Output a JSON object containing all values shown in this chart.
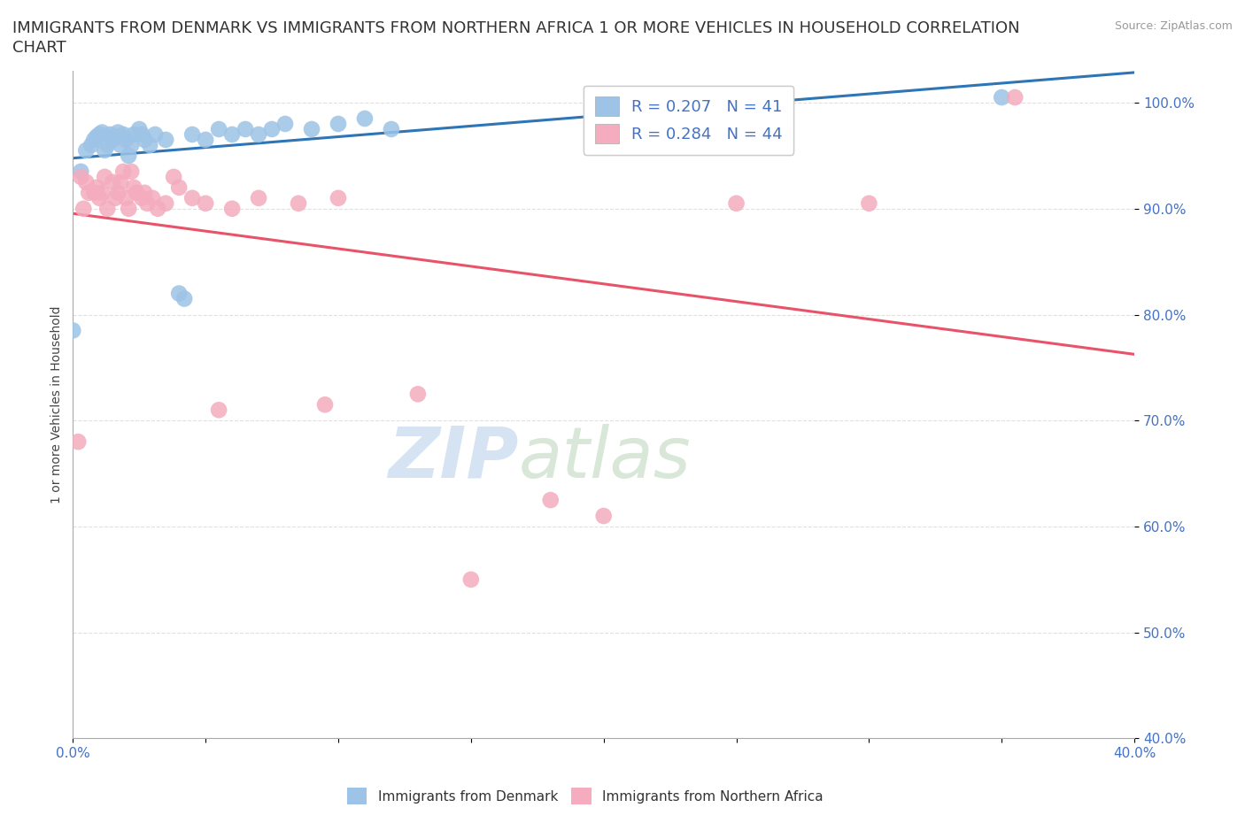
{
  "title_line1": "IMMIGRANTS FROM DENMARK VS IMMIGRANTS FROM NORTHERN AFRICA 1 OR MORE VEHICLES IN HOUSEHOLD CORRELATION",
  "title_line2": "CHART",
  "source_text": "Source: ZipAtlas.com",
  "ylabel": "1 or more Vehicles in Household",
  "watermark_zip": "ZIP",
  "watermark_atlas": "atlas",
  "denmark_x": [
    0.0,
    0.3,
    0.5,
    0.7,
    0.8,
    0.9,
    1.0,
    1.1,
    1.2,
    1.3,
    1.4,
    1.5,
    1.6,
    1.7,
    1.8,
    1.9,
    2.0,
    2.1,
    2.2,
    2.3,
    2.5,
    2.6,
    2.7,
    2.9,
    3.1,
    3.5,
    4.0,
    4.2,
    4.5,
    5.0,
    5.5,
    6.0,
    6.5,
    7.0,
    7.5,
    8.0,
    9.0,
    10.0,
    11.0,
    12.0,
    35.0
  ],
  "denmark_y": [
    78.5,
    93.5,
    95.5,
    96.0,
    96.5,
    96.8,
    97.0,
    97.2,
    95.5,
    96.0,
    97.0,
    96.5,
    96.8,
    97.2,
    96.0,
    97.0,
    96.5,
    95.0,
    96.0,
    97.0,
    97.5,
    97.0,
    96.5,
    96.0,
    97.0,
    96.5,
    82.0,
    81.5,
    97.0,
    96.5,
    97.5,
    97.0,
    97.5,
    97.0,
    97.5,
    98.0,
    97.5,
    98.0,
    98.5,
    97.5,
    100.5
  ],
  "na_x": [
    0.3,
    0.5,
    0.8,
    1.0,
    1.2,
    1.5,
    1.7,
    1.9,
    2.0,
    2.2,
    2.4,
    2.6,
    2.8,
    3.0,
    3.2,
    3.5,
    3.8,
    4.0,
    4.5,
    5.0,
    5.5,
    6.0,
    7.0,
    8.5,
    9.5,
    10.0,
    13.0,
    15.0,
    18.0,
    20.0,
    25.0,
    35.5,
    0.2,
    0.4,
    0.6,
    0.9,
    1.1,
    1.3,
    1.6,
    1.8,
    2.1,
    2.3,
    2.7,
    30.0
  ],
  "na_y": [
    93.0,
    92.5,
    91.5,
    91.0,
    93.0,
    92.5,
    91.5,
    93.5,
    91.0,
    93.5,
    91.5,
    91.0,
    90.5,
    91.0,
    90.0,
    90.5,
    93.0,
    92.0,
    91.0,
    90.5,
    71.0,
    90.0,
    91.0,
    90.5,
    71.5,
    91.0,
    72.5,
    55.0,
    62.5,
    61.0,
    90.5,
    100.5,
    68.0,
    90.0,
    91.5,
    92.0,
    91.5,
    90.0,
    91.0,
    92.5,
    90.0,
    92.0,
    91.5,
    90.5
  ],
  "denmark_color": "#9dc3e6",
  "na_color": "#f4acbe",
  "denmark_trend_color": "#2e75b6",
  "na_trend_color": "#e8536a",
  "R_denmark": 0.207,
  "N_denmark": 41,
  "R_na": 0.284,
  "N_na": 44,
  "xlim": [
    0,
    40
  ],
  "ylim": [
    40,
    103
  ],
  "ytick_pos": [
    40,
    50,
    60,
    70,
    80,
    90,
    100
  ],
  "ytick_labels": [
    "40.0%",
    "50.0%",
    "60.0%",
    "70.0%",
    "80.0%",
    "90.0%",
    "100.0%"
  ],
  "xtick_pos": [
    0,
    5,
    10,
    15,
    20,
    25,
    30,
    35,
    40
  ],
  "xtick_labels": [
    "0.0%",
    "",
    "",
    "",
    "",
    "",
    "",
    "",
    "40.0%"
  ],
  "grid_color": "#e0e0e0",
  "background_color": "#ffffff",
  "title_fontsize": 13,
  "axis_label_fontsize": 10,
  "tick_fontsize": 11,
  "legend_fontsize": 13
}
